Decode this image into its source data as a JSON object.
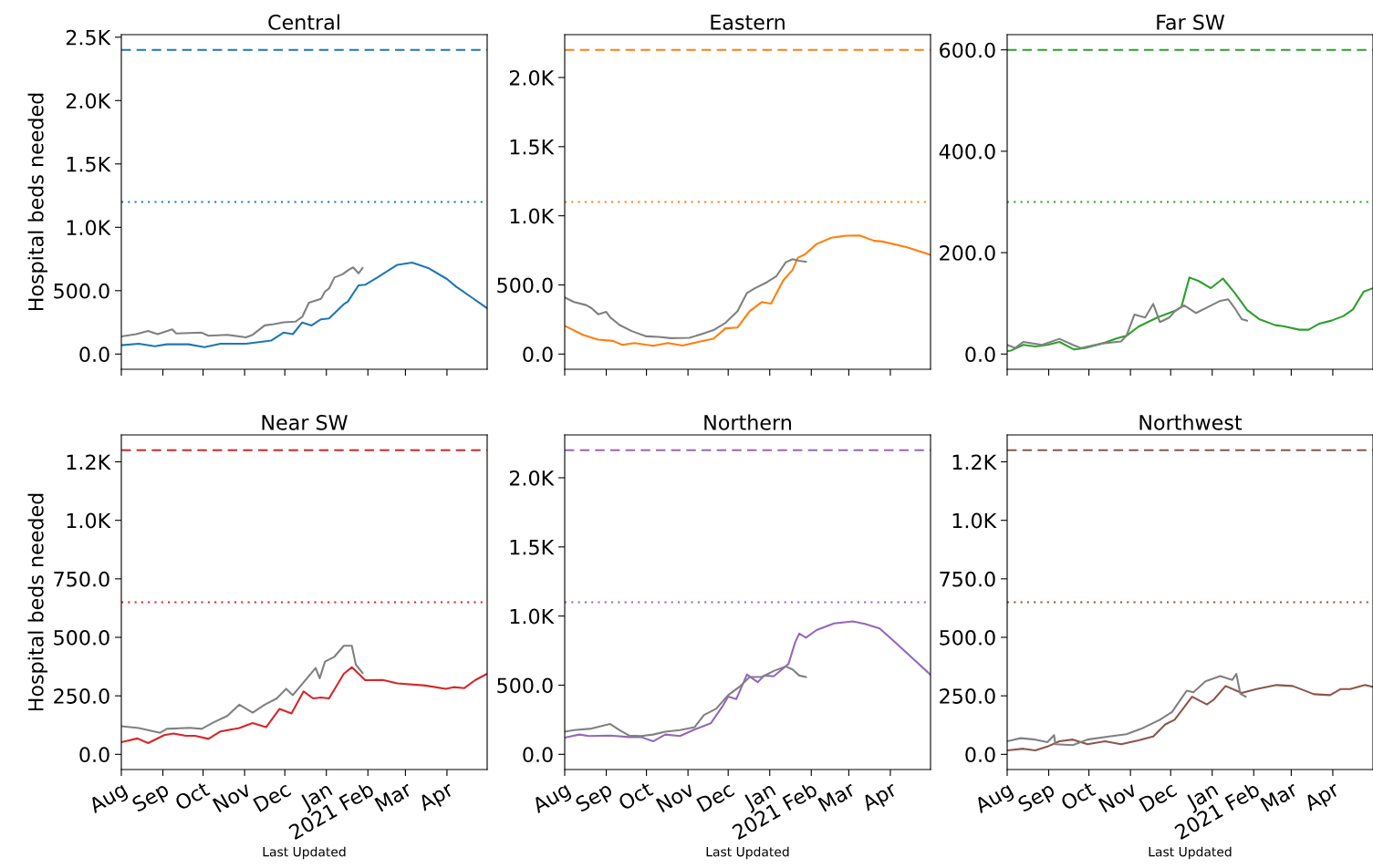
{
  "chart_data": [
    {
      "type": "line",
      "title": "Central",
      "ylabel": "Hospital beds needed",
      "tick_labels": "y",
      "xlim": [
        "2020-08-01",
        "2021-05-01"
      ],
      "xticks": [
        "2020-08-01",
        "2020-09-01",
        "2020-10-01",
        "2020-11-01",
        "2020-12-01",
        "2021-01-01",
        "2021-02-01",
        "2021-03-01",
        "2021-04-01"
      ],
      "ylim": [
        -120,
        2520
      ],
      "yticks": [
        {
          "value": 0,
          "label": "0.0"
        },
        {
          "value": 500,
          "label": "500.0"
        },
        {
          "value": 1000,
          "label": "1.0K"
        },
        {
          "value": 1500,
          "label": "1.5K"
        },
        {
          "value": 2000,
          "label": "2.0K"
        },
        {
          "value": 2500,
          "label": "2.5K"
        }
      ],
      "ref_lines": [
        {
          "axis": "y",
          "value": 2400,
          "color": "#1f77b4",
          "line_style": "dashed"
        },
        {
          "axis": "y",
          "value": 1200,
          "color": "#1f77b4",
          "line_style": "dotted"
        }
      ],
      "series": [
        {
          "color": "#1f77b4",
          "x": [
            "2020-08-01",
            "2020-08-14",
            "2020-08-26",
            "2020-09-04",
            "2020-09-20",
            "2020-10-02",
            "2020-10-14",
            "2020-11-02",
            "2020-11-21",
            "2020-11-30",
            "2020-12-07",
            "2020-12-14",
            "2020-12-21",
            "2020-12-28",
            "2021-01-03",
            "2021-01-14",
            "2021-01-17",
            "2021-01-25",
            "2021-01-30",
            "2021-02-08",
            "2021-02-23",
            "2021-03-06",
            "2021-03-18",
            "2021-04-01",
            "2021-04-08",
            "2021-04-20",
            "2021-05-01"
          ],
          "values": [
            70,
            82,
            62,
            77,
            77,
            55,
            82,
            82,
            107,
            169,
            157,
            249,
            226,
            274,
            281,
            393,
            413,
            542,
            547,
            604,
            704,
            721,
            679,
            592,
            530,
            443,
            361
          ]
        },
        {
          "color": "#808080",
          "x": [
            "2020-08-01",
            "2020-08-12",
            "2020-08-21",
            "2020-08-28",
            "2020-09-08",
            "2020-09-11",
            "2020-09-30",
            "2020-10-05",
            "2020-10-19",
            "2020-11-02",
            "2020-11-07",
            "2020-11-16",
            "2020-11-23",
            "2020-11-30",
            "2020-12-09",
            "2020-12-14",
            "2020-12-19",
            "2020-12-28",
            "2020-12-31",
            "2021-01-03",
            "2021-01-07",
            "2021-01-13",
            "2021-01-18",
            "2021-01-21",
            "2021-01-25",
            "2021-01-28"
          ],
          "values": [
            139,
            157,
            182,
            157,
            194,
            162,
            169,
            144,
            152,
            132,
            152,
            226,
            236,
            251,
            256,
            294,
            405,
            435,
            493,
            517,
            604,
            629,
            667,
            684,
            637,
            679
          ]
        }
      ]
    },
    {
      "type": "line",
      "title": "Eastern",
      "tick_labels": "y",
      "xlim": [
        "2020-08-01",
        "2021-05-01"
      ],
      "xticks": [
        "2020-08-01",
        "2020-09-01",
        "2020-10-01",
        "2020-11-01",
        "2020-12-01",
        "2021-01-01",
        "2021-02-01",
        "2021-03-01",
        "2021-04-01"
      ],
      "ylim": [
        -110,
        2310
      ],
      "yticks": [
        {
          "value": 0,
          "label": "0.0"
        },
        {
          "value": 500,
          "label": "500.0"
        },
        {
          "value": 1000,
          "label": "1.0K"
        },
        {
          "value": 1500,
          "label": "1.5K"
        },
        {
          "value": 2000,
          "label": "2.0K"
        }
      ],
      "ref_lines": [
        {
          "axis": "y",
          "value": 2200,
          "color": "#ff7f0e",
          "line_style": "dashed"
        },
        {
          "axis": "y",
          "value": 1100,
          "color": "#ff7f0e",
          "line_style": "dotted"
        }
      ],
      "series": [
        {
          "color": "#ff7f0e",
          "x": [
            "2020-08-01",
            "2020-08-15",
            "2020-08-26",
            "2020-09-06",
            "2020-09-13",
            "2020-09-22",
            "2020-10-06",
            "2020-10-17",
            "2020-10-28",
            "2020-11-11",
            "2020-11-20",
            "2020-11-29",
            "2020-12-08",
            "2020-12-17",
            "2020-12-26",
            "2021-01-02",
            "2021-01-11",
            "2021-01-18",
            "2021-01-22",
            "2021-01-27",
            "2021-02-05",
            "2021-02-16",
            "2021-02-27",
            "2021-03-09",
            "2021-03-20",
            "2021-03-26",
            "2021-04-13",
            "2021-05-01"
          ],
          "values": [
            204,
            137,
            104,
            95,
            66,
            80,
            60,
            80,
            62,
            93,
            111,
            186,
            192,
            310,
            376,
            365,
            531,
            608,
            697,
            719,
            796,
            841,
            856,
            858,
            819,
            814,
            774,
            717
          ]
        },
        {
          "color": "#808080",
          "x": [
            "2020-08-01",
            "2020-08-08",
            "2020-08-17",
            "2020-08-21",
            "2020-08-26",
            "2020-09-01",
            "2020-09-04",
            "2020-09-11",
            "2020-09-20",
            "2020-10-01",
            "2020-10-10",
            "2020-10-19",
            "2020-11-02",
            "2020-11-11",
            "2020-11-20",
            "2020-11-29",
            "2020-12-08",
            "2020-12-15",
            "2020-12-21",
            "2020-12-30",
            "2021-01-06",
            "2021-01-13",
            "2021-01-18",
            "2021-01-23",
            "2021-01-28"
          ],
          "values": [
            409,
            376,
            354,
            332,
            288,
            305,
            265,
            210,
            166,
            128,
            124,
            115,
            117,
            144,
            173,
            226,
            310,
            442,
            476,
            520,
            564,
            664,
            686,
            675,
            668
          ]
        }
      ]
    },
    {
      "type": "line",
      "title": "Far SW",
      "tick_labels": "y",
      "xlim": [
        "2020-08-01",
        "2021-05-01"
      ],
      "xticks": [
        "2020-08-01",
        "2020-09-01",
        "2020-10-01",
        "2020-11-01",
        "2020-12-01",
        "2021-01-01",
        "2021-02-01",
        "2021-03-01",
        "2021-04-01"
      ],
      "ylim": [
        -30,
        630
      ],
      "yticks": [
        {
          "value": 0,
          "label": "0.0"
        },
        {
          "value": 200,
          "label": "200.0"
        },
        {
          "value": 400,
          "label": "400.0"
        },
        {
          "value": 600,
          "label": "600.0"
        }
      ],
      "ref_lines": [
        {
          "axis": "y",
          "value": 600,
          "color": "#2ca02c",
          "line_style": "dashed"
        },
        {
          "axis": "y",
          "value": 300,
          "color": "#2ca02c",
          "line_style": "dotted"
        }
      ],
      "series": [
        {
          "color": "#2ca02c",
          "x": [
            "2020-08-01",
            "2020-08-04",
            "2020-08-13",
            "2020-08-22",
            "2020-08-31",
            "2020-09-09",
            "2020-09-20",
            "2020-09-28",
            "2020-10-11",
            "2020-10-22",
            "2020-10-29",
            "2020-11-07",
            "2020-11-21",
            "2020-12-04",
            "2020-12-09",
            "2020-12-15",
            "2020-12-22",
            "2020-12-31",
            "2021-01-09",
            "2021-01-18",
            "2021-01-27",
            "2021-02-05",
            "2021-02-17",
            "2021-02-23",
            "2021-03-07",
            "2021-03-14",
            "2021-03-22",
            "2021-03-31",
            "2021-04-09",
            "2021-04-16",
            "2021-04-24",
            "2021-04-29",
            "2021-05-01"
          ],
          "values": [
            6,
            7,
            18,
            15,
            18,
            24,
            9,
            12,
            21,
            31,
            36,
            54,
            72,
            85,
            93,
            151,
            144,
            130,
            149,
            120,
            87,
            69,
            57,
            55,
            48,
            48,
            60,
            66,
            75,
            88,
            123,
            128,
            130
          ]
        },
        {
          "color": "#808080",
          "x": [
            "2020-08-01",
            "2020-08-07",
            "2020-08-13",
            "2020-08-27",
            "2020-09-09",
            "2020-09-19",
            "2020-09-25",
            "2020-10-11",
            "2020-10-25",
            "2020-10-29",
            "2020-11-04",
            "2020-11-12",
            "2020-11-18",
            "2020-11-23",
            "2020-11-30",
            "2020-12-04",
            "2020-12-11",
            "2020-12-20",
            "2020-12-29",
            "2021-01-07",
            "2021-01-13",
            "2021-01-18",
            "2021-01-23",
            "2021-01-27"
          ],
          "values": [
            18,
            12,
            24,
            18,
            30,
            18,
            12,
            21,
            25,
            36,
            78,
            72,
            99,
            63,
            72,
            84,
            96,
            81,
            93,
            105,
            108,
            90,
            69,
            66
          ]
        }
      ]
    },
    {
      "type": "line",
      "title": "Near SW",
      "ylabel": "Hospital beds needed",
      "xlabel": "Last Updated",
      "xlim": [
        "2020-08-01",
        "2021-05-01"
      ],
      "xticks": [
        {
          "value": "2020-08-01",
          "label": "Aug"
        },
        {
          "value": "2020-09-01",
          "label": "Sep"
        },
        {
          "value": "2020-10-01",
          "label": "Oct"
        },
        {
          "value": "2020-11-01",
          "label": "Nov"
        },
        {
          "value": "2020-12-01",
          "label": "Dec"
        },
        {
          "value": "2021-01-01",
          "label": "Jan"
        },
        {
          "value": "2021-02-01",
          "label": "2021 Feb"
        },
        {
          "value": "2021-03-01",
          "label": "Mar"
        },
        {
          "value": "2021-04-01",
          "label": "Apr"
        }
      ],
      "ylim": [
        -65,
        1365
      ],
      "yticks": [
        {
          "value": 0,
          "label": "0.0"
        },
        {
          "value": 250,
          "label": "250.0"
        },
        {
          "value": 500,
          "label": "500.0"
        },
        {
          "value": 750,
          "label": "750.0"
        },
        {
          "value": 1000,
          "label": "1.0K"
        },
        {
          "value": 1250,
          "label": "1.2K"
        }
      ],
      "ref_lines": [
        {
          "axis": "y",
          "value": 1300,
          "color": "#d62728",
          "line_style": "dashed"
        },
        {
          "axis": "y",
          "value": 650,
          "color": "#d62728",
          "line_style": "dotted"
        }
      ],
      "series": [
        {
          "color": "#d62728",
          "x": [
            "2020-08-01",
            "2020-08-13",
            "2020-08-21",
            "2020-09-02",
            "2020-09-09",
            "2020-09-18",
            "2020-09-25",
            "2020-10-05",
            "2020-10-14",
            "2020-10-28",
            "2020-11-07",
            "2020-11-17",
            "2020-11-27",
            "2020-12-06",
            "2020-12-15",
            "2020-12-22",
            "2020-12-28",
            "2021-01-03",
            "2021-01-14",
            "2021-01-20",
            "2021-01-30",
            "2021-02-12",
            "2021-02-23",
            "2021-03-16",
            "2021-03-31",
            "2021-04-06",
            "2021-04-14",
            "2021-04-22",
            "2021-05-01"
          ],
          "values": [
            52,
            68,
            48,
            82,
            89,
            79,
            79,
            66,
            98,
            112,
            134,
            116,
            194,
            175,
            269,
            239,
            243,
            239,
            344,
            372,
            317,
            318,
            303,
            294,
            280,
            287,
            283,
            317,
            344
          ]
        },
        {
          "color": "#808080",
          "x": [
            "2020-08-01",
            "2020-08-14",
            "2020-08-30",
            "2020-09-04",
            "2020-09-21",
            "2020-09-30",
            "2020-10-09",
            "2020-10-19",
            "2020-10-28",
            "2020-11-07",
            "2020-11-16",
            "2020-11-25",
            "2020-12-02",
            "2020-12-07",
            "2020-12-14",
            "2020-12-24",
            "2020-12-27",
            "2020-12-31",
            "2021-01-07",
            "2021-01-14",
            "2021-01-20",
            "2021-01-23",
            "2021-01-28"
          ],
          "values": [
            120,
            112,
            92,
            109,
            113,
            109,
            137,
            164,
            212,
            178,
            212,
            239,
            280,
            253,
            301,
            369,
            325,
            396,
            417,
            464,
            464,
            383,
            348
          ]
        }
      ]
    },
    {
      "type": "line",
      "title": "Northern",
      "xlabel": "Last Updated",
      "xlim": [
        "2020-08-01",
        "2021-05-01"
      ],
      "xticks": [
        {
          "value": "2020-08-01",
          "label": "Aug"
        },
        {
          "value": "2020-09-01",
          "label": "Sep"
        },
        {
          "value": "2020-10-01",
          "label": "Oct"
        },
        {
          "value": "2020-11-01",
          "label": "Nov"
        },
        {
          "value": "2020-12-01",
          "label": "Dec"
        },
        {
          "value": "2021-01-01",
          "label": "Jan"
        },
        {
          "value": "2021-02-01",
          "label": "2021 Feb"
        },
        {
          "value": "2021-03-01",
          "label": "Mar"
        },
        {
          "value": "2021-04-01",
          "label": "Apr"
        }
      ],
      "ylim": [
        -110,
        2310
      ],
      "yticks": [
        {
          "value": 0,
          "label": "0.0"
        },
        {
          "value": 500,
          "label": "500.0"
        },
        {
          "value": 1000,
          "label": "1.0K"
        },
        {
          "value": 1500,
          "label": "1.5K"
        },
        {
          "value": 2000,
          "label": "2.0K"
        }
      ],
      "ref_lines": [
        {
          "axis": "y",
          "value": 2200,
          "color": "#9467bd",
          "line_style": "dashed"
        },
        {
          "axis": "y",
          "value": 1100,
          "color": "#9467bd",
          "line_style": "dotted"
        }
      ],
      "series": [
        {
          "color": "#9467bd",
          "x": [
            "2020-08-01",
            "2020-08-12",
            "2020-08-19",
            "2020-09-04",
            "2020-09-18",
            "2020-09-27",
            "2020-10-06",
            "2020-10-15",
            "2020-10-26",
            "2020-11-06",
            "2020-11-18",
            "2020-11-27",
            "2020-12-01",
            "2020-12-07",
            "2020-12-15",
            "2020-12-23",
            "2020-12-28",
            "2021-01-04",
            "2021-01-15",
            "2021-01-20",
            "2021-01-23",
            "2021-01-28",
            "2021-02-05",
            "2021-02-18",
            "2021-03-04",
            "2021-03-13",
            "2021-03-24",
            "2021-04-02",
            "2021-04-18",
            "2021-05-01"
          ],
          "values": [
            121,
            143,
            132,
            136,
            125,
            125,
            94,
            143,
            132,
            180,
            224,
            351,
            417,
            399,
            577,
            522,
            570,
            564,
            654,
            811,
            873,
            844,
            899,
            947,
            961,
            943,
            910,
            833,
            691,
            575
          ]
        },
        {
          "color": "#808080",
          "x": [
            "2020-08-01",
            "2020-08-08",
            "2020-08-21",
            "2020-08-30",
            "2020-09-04",
            "2020-09-11",
            "2020-09-18",
            "2020-09-27",
            "2020-10-06",
            "2020-10-15",
            "2020-10-26",
            "2020-11-06",
            "2020-11-13",
            "2020-11-22",
            "2020-12-01",
            "2020-12-10",
            "2020-12-17",
            "2020-12-26",
            "2021-01-04",
            "2021-01-13",
            "2021-01-18",
            "2021-01-23",
            "2021-01-28"
          ],
          "values": [
            164,
            175,
            186,
            208,
            219,
            175,
            136,
            132,
            143,
            164,
            175,
            197,
            285,
            329,
            428,
            493,
            559,
            559,
            603,
            636,
            614,
            570,
            559
          ]
        }
      ]
    },
    {
      "type": "line",
      "title": "Northwest",
      "xlabel": "Last Updated",
      "xlim": [
        "2020-08-01",
        "2021-05-01"
      ],
      "xticks": [
        {
          "value": "2020-08-01",
          "label": "Aug"
        },
        {
          "value": "2020-09-01",
          "label": "Sep"
        },
        {
          "value": "2020-10-01",
          "label": "Oct"
        },
        {
          "value": "2020-11-01",
          "label": "Nov"
        },
        {
          "value": "2020-12-01",
          "label": "Dec"
        },
        {
          "value": "2021-01-01",
          "label": "Jan"
        },
        {
          "value": "2021-02-01",
          "label": "2021 Feb"
        },
        {
          "value": "2021-03-01",
          "label": "Mar"
        },
        {
          "value": "2021-04-01",
          "label": "Apr"
        }
      ],
      "ylim": [
        -65,
        1365
      ],
      "yticks": [
        {
          "value": 0,
          "label": "0.0"
        },
        {
          "value": 250,
          "label": "250.0"
        },
        {
          "value": 500,
          "label": "500.0"
        },
        {
          "value": 750,
          "label": "750.0"
        },
        {
          "value": 1000,
          "label": "1.0K"
        },
        {
          "value": 1250,
          "label": "1.2K"
        }
      ],
      "ref_lines": [
        {
          "axis": "y",
          "value": 1300,
          "color": "#8c564b",
          "line_style": "dashed"
        },
        {
          "axis": "y",
          "value": 650,
          "color": "#8c564b",
          "line_style": "dotted"
        }
      ],
      "series": [
        {
          "color": "#8c564b",
          "x": [
            "2020-08-01",
            "2020-08-13",
            "2020-08-22",
            "2020-08-31",
            "2020-09-09",
            "2020-09-19",
            "2020-09-30",
            "2020-10-13",
            "2020-10-25",
            "2020-11-07",
            "2020-11-18",
            "2020-11-27",
            "2020-12-04",
            "2020-12-17",
            "2020-12-28",
            "2021-01-02",
            "2021-01-11",
            "2021-01-23",
            "2021-02-03",
            "2021-02-18",
            "2021-03-02",
            "2021-03-18",
            "2021-03-30",
            "2021-04-07",
            "2021-04-14",
            "2021-04-25",
            "2021-05-01"
          ],
          "values": [
            17,
            24,
            17,
            33,
            56,
            63,
            43,
            56,
            43,
            60,
            76,
            128,
            148,
            246,
            213,
            233,
            292,
            262,
            279,
            296,
            292,
            257,
            253,
            279,
            279,
            296,
            288
          ]
        },
        {
          "color": "#808080",
          "x": [
            "2020-08-01",
            "2020-08-11",
            "2020-08-22",
            "2020-08-31",
            "2020-09-05",
            "2020-09-06",
            "2020-09-19",
            "2020-09-30",
            "2020-10-16",
            "2020-10-29",
            "2020-11-09",
            "2020-11-23",
            "2020-12-02",
            "2020-12-13",
            "2020-12-18",
            "2020-12-27",
            "2021-01-07",
            "2021-01-16",
            "2021-01-19",
            "2021-01-22",
            "2021-01-26"
          ],
          "values": [
            56,
            69,
            63,
            52,
            82,
            43,
            39,
            63,
            76,
            86,
            109,
            148,
            181,
            272,
            265,
            312,
            334,
            318,
            344,
            259,
            246
          ]
        }
      ]
    }
  ]
}
